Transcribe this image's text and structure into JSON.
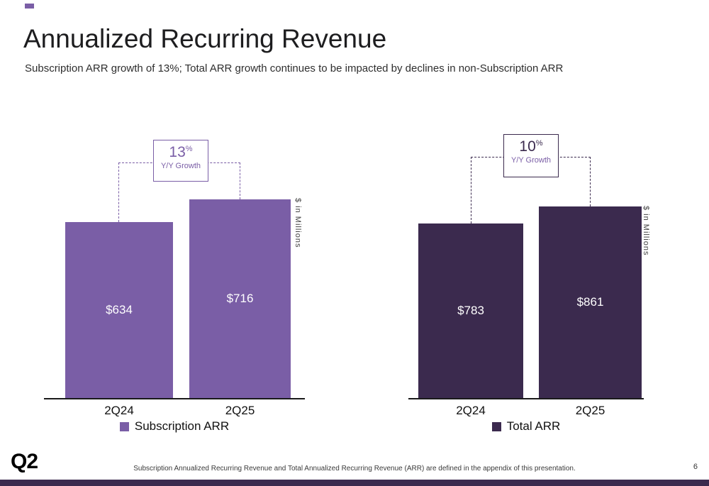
{
  "slide": {
    "title": "Annualized Recurring Revenue",
    "subtitle": "Subscription ARR growth of 13%; Total ARR growth continues to be impacted by declines in non-Subscription ARR",
    "footnote": "Subscription Annualized Recurring Revenue and Total Annualized Recurring Revenue (ARR) are defined in the appendix of this presentation.",
    "page_number": "6",
    "logo_text": "Q2"
  },
  "colors": {
    "accent": "#7a5ea6",
    "subscription_bar": "#7a5ea6",
    "total_bar": "#3b2a4e",
    "footer_strip": "#3b2a4e"
  },
  "chart_data": [
    {
      "type": "bar",
      "categories": [
        "2Q24",
        "2Q25"
      ],
      "values": [
        634,
        716
      ],
      "value_labels": [
        "$634",
        "$716"
      ],
      "series_name": "Subscription ARR",
      "growth_value": "13",
      "growth_pct_sign": "%",
      "growth_label": "Y/Y Growth",
      "ylabel": "$ in Millions",
      "bar_color": "#7a5ea6",
      "legend_position": "bottom",
      "grid": false
    },
    {
      "type": "bar",
      "categories": [
        "2Q24",
        "2Q25"
      ],
      "values": [
        783,
        861
      ],
      "value_labels": [
        "$783",
        "$861"
      ],
      "series_name": "Total ARR",
      "growth_value": "10",
      "growth_pct_sign": "%",
      "growth_label": "Y/Y Growth",
      "ylabel": "$ in Millions",
      "bar_color": "#3b2a4e",
      "legend_position": "bottom",
      "grid": false
    }
  ]
}
